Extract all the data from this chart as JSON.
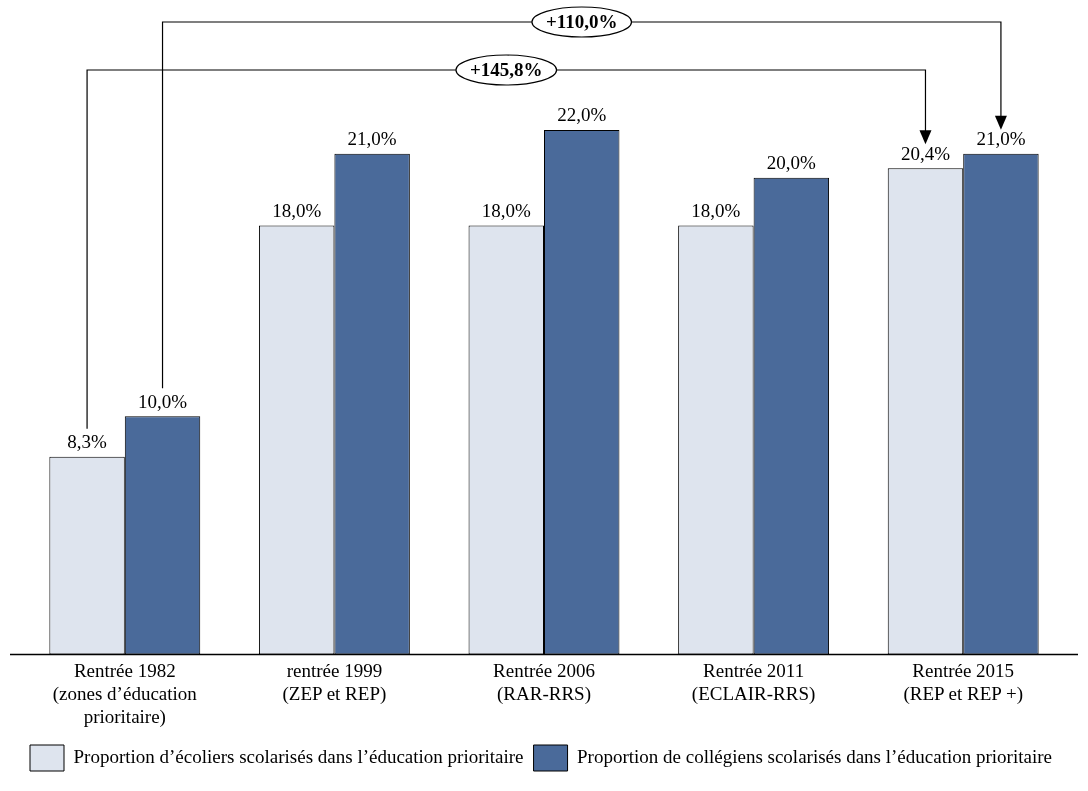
{
  "chart_data": {
    "type": "bar",
    "categories": [
      "Rentrée 1982 (zones d’éducation prioritaire)",
      "rentrée 1999 (ZEP et REP)",
      "Rentrée 2006 (RAR-RRS)",
      "Rentrée 2011 (ECLAIR-RRS)",
      "Rentrée 2015 (REP et REP +)"
    ],
    "series": [
      {
        "name": "Proportion d’écoliers scolarisés dans l’éducation prioritaire",
        "color": "#dee4ee",
        "values": [
          8.3,
          18.0,
          18.0,
          18.0,
          20.4
        ],
        "value_labels": [
          "8,3%",
          "18,0%",
          "18,0%",
          "18,0%",
          "20,4%"
        ]
      },
      {
        "name": "Proportion de collégiens scolarisés dans l’éducation prioritaire",
        "color": "#4a6a9a",
        "values": [
          10.0,
          21.0,
          22.0,
          20.0,
          21.0
        ],
        "value_labels": [
          "10,0%",
          "21,0%",
          "22,0%",
          "20,0%",
          "21,0%"
        ]
      }
    ],
    "annotations": [
      "+110,0%",
      "+145,8%"
    ],
    "legend": "bottom left",
    "grid": false
  }
}
